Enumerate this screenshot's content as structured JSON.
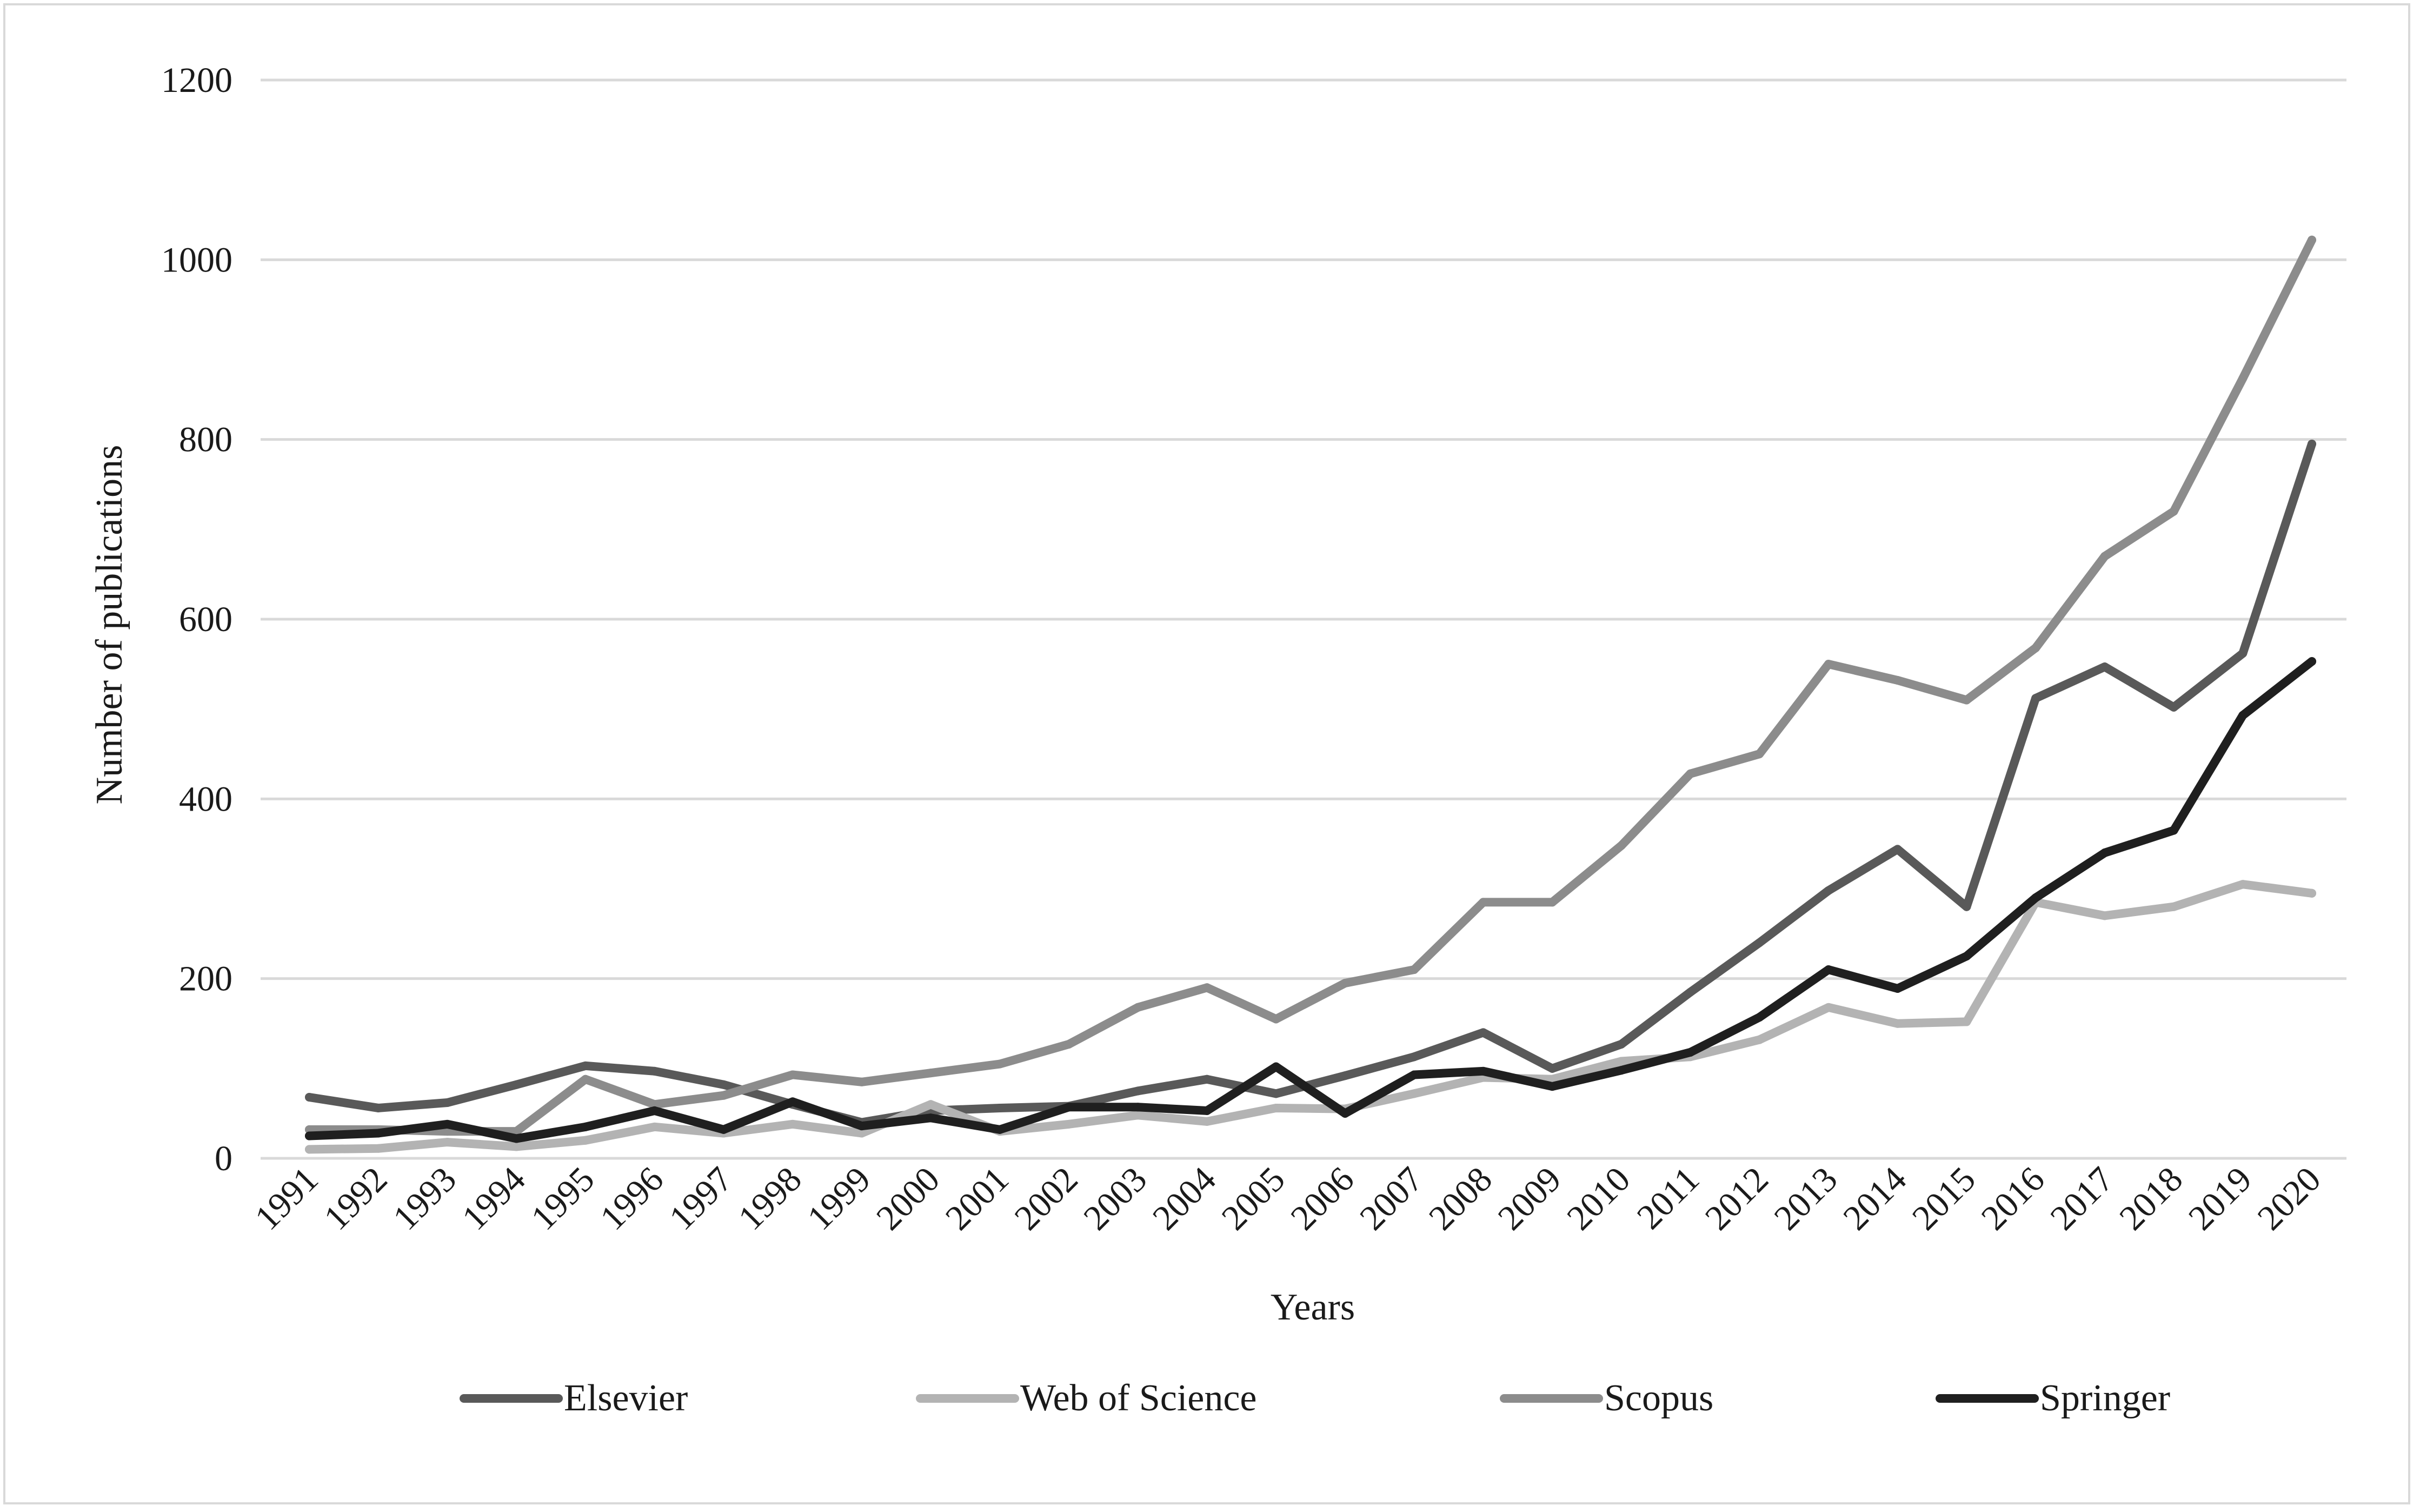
{
  "chart_data": {
    "type": "line",
    "title": "",
    "xlabel": "Years",
    "ylabel": "Number of publications",
    "ylim": [
      0,
      1200
    ],
    "yticks": [
      0,
      200,
      400,
      600,
      800,
      1000,
      1200
    ],
    "grid": "horizontal",
    "legend_position": "bottom",
    "categories": [
      "1991",
      "1992",
      "1993",
      "1994",
      "1995",
      "1996",
      "1997",
      "1998",
      "1999",
      "2000",
      "2001",
      "2002",
      "2003",
      "2004",
      "2005",
      "2006",
      "2007",
      "2008",
      "2009",
      "2010",
      "2011",
      "2012",
      "2013",
      "2014",
      "2015",
      "2016",
      "2017",
      "2018",
      "2019",
      "2020"
    ],
    "series": [
      {
        "name": "Elsevier",
        "color": "#595959",
        "values": [
          68,
          56,
          62,
          82,
          103,
          97,
          82,
          60,
          40,
          53,
          56,
          58,
          75,
          88,
          72,
          92,
          113,
          140,
          100,
          127,
          185,
          240,
          298,
          344,
          280,
          512,
          547,
          502,
          562,
          795
        ]
      },
      {
        "name": "Web of Science",
        "color": "#b3b3b3",
        "values": [
          10,
          11,
          18,
          13,
          20,
          35,
          28,
          38,
          28,
          60,
          30,
          38,
          48,
          41,
          56,
          55,
          72,
          90,
          88,
          108,
          113,
          132,
          168,
          150,
          152,
          285,
          270,
          280,
          305,
          295
        ]
      },
      {
        "name": "Scopus",
        "color": "#8c8c8c",
        "values": [
          32,
          32,
          30,
          30,
          88,
          60,
          70,
          93,
          85,
          95,
          105,
          127,
          168,
          190,
          155,
          195,
          210,
          285,
          285,
          348,
          428,
          450,
          550,
          532,
          510,
          568,
          670,
          720,
          868,
          1022
        ]
      },
      {
        "name": "Springer",
        "color": "#1f1f1f",
        "values": [
          25,
          28,
          38,
          22,
          35,
          53,
          32,
          63,
          36,
          45,
          32,
          57,
          57,
          53,
          102,
          50,
          93,
          97,
          80,
          98,
          118,
          157,
          210,
          189,
          225,
          290,
          340,
          365,
          493,
          553
        ]
      }
    ]
  }
}
